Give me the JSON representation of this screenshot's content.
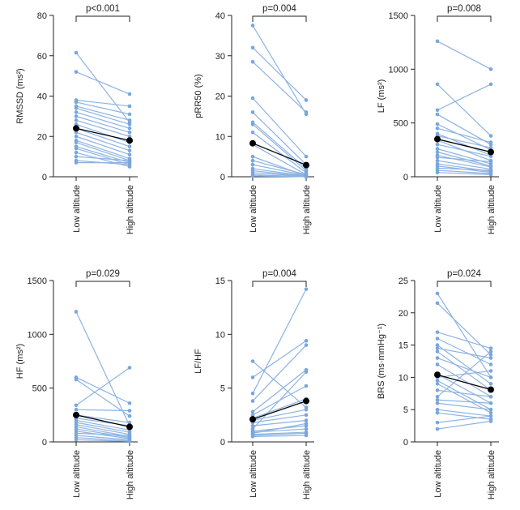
{
  "colors": {
    "line": "#8db3e2",
    "dot": "#7aa6dc",
    "mean": "#000000",
    "axis": "#222222"
  },
  "chart_data": [
    {
      "type": "line",
      "panel": "rmssd",
      "ylabel": "RMSSD (ms²)",
      "pvalue": "p<0.001",
      "categories": [
        "Low altitude",
        "High altitude"
      ],
      "ylim": [
        0,
        80
      ],
      "yticks": [
        "0",
        "20",
        "40",
        "60",
        "80"
      ],
      "ytick_values": [
        0,
        20,
        40,
        60,
        80
      ],
      "pairs": [
        [
          61.5,
          27
        ],
        [
          52,
          41
        ],
        [
          38,
          35
        ],
        [
          37,
          31
        ],
        [
          35,
          28
        ],
        [
          34,
          26
        ],
        [
          32,
          24
        ],
        [
          30,
          22
        ],
        [
          28,
          20
        ],
        [
          26,
          17
        ],
        [
          24,
          15
        ],
        [
          22,
          13
        ],
        [
          20,
          11
        ],
        [
          18,
          9
        ],
        [
          17,
          8
        ],
        [
          15,
          7
        ],
        [
          14,
          6
        ],
        [
          12,
          5
        ],
        [
          10,
          8
        ],
        [
          8,
          6
        ],
        [
          7,
          7
        ]
      ],
      "mean": [
        24,
        18
      ]
    },
    {
      "type": "line",
      "panel": "prr50",
      "ylabel": "pRR50 (%)",
      "pvalue": "p=0.004",
      "categories": [
        "Low altitude",
        "High altitude"
      ],
      "ylim": [
        0,
        40
      ],
      "yticks": [
        "0",
        "10",
        "20",
        "30",
        "40"
      ],
      "ytick_values": [
        0,
        10,
        20,
        30,
        40
      ],
      "pairs": [
        [
          37.5,
          15.5
        ],
        [
          32,
          19
        ],
        [
          28.5,
          16
        ],
        [
          19.5,
          5
        ],
        [
          16,
          3
        ],
        [
          13.5,
          2
        ],
        [
          13,
          1.5
        ],
        [
          11,
          1
        ],
        [
          8,
          0.5
        ],
        [
          5,
          0.2
        ],
        [
          4,
          0.5
        ],
        [
          3,
          0.3
        ],
        [
          2,
          0.2
        ],
        [
          1.5,
          0.1
        ],
        [
          1,
          0.1
        ],
        [
          0.5,
          0
        ],
        [
          0.2,
          0
        ]
      ],
      "mean": [
        8.3,
        2.9
      ]
    },
    {
      "type": "line",
      "panel": "lf",
      "ylabel": "LF (ms²)",
      "pvalue": "p=0.008",
      "categories": [
        "Low altitude",
        "High altitude"
      ],
      "ylim": [
        0,
        1500
      ],
      "yticks": [
        "0",
        "500",
        "1000",
        "1500"
      ],
      "ytick_values": [
        0,
        500,
        1000,
        1500
      ],
      "pairs": [
        [
          1260,
          1000
        ],
        [
          860,
          380
        ],
        [
          620,
          860
        ],
        [
          580,
          300
        ],
        [
          490,
          250
        ],
        [
          450,
          320
        ],
        [
          400,
          200
        ],
        [
          380,
          270
        ],
        [
          340,
          150
        ],
        [
          300,
          190
        ],
        [
          260,
          120
        ],
        [
          230,
          100
        ],
        [
          200,
          90
        ],
        [
          180,
          140
        ],
        [
          150,
          70
        ],
        [
          120,
          50
        ],
        [
          100,
          40
        ],
        [
          80,
          60
        ],
        [
          60,
          30
        ],
        [
          40,
          20
        ]
      ],
      "mean": [
        350,
        230
      ]
    },
    {
      "type": "line",
      "panel": "hf",
      "ylabel": "HF (ms²)",
      "pvalue": "p=0.029",
      "categories": [
        "Low altitude",
        "High altitude"
      ],
      "ylim": [
        0,
        1500
      ],
      "yticks": [
        "0",
        "500",
        "1000",
        "1500"
      ],
      "ytick_values": [
        0,
        500,
        1000,
        1500
      ],
      "pairs": [
        [
          1210,
          150
        ],
        [
          600,
          360
        ],
        [
          580,
          240
        ],
        [
          340,
          690
        ],
        [
          300,
          290
        ],
        [
          250,
          180
        ],
        [
          220,
          150
        ],
        [
          200,
          110
        ],
        [
          180,
          90
        ],
        [
          160,
          70
        ],
        [
          140,
          50
        ],
        [
          120,
          40
        ],
        [
          100,
          30
        ],
        [
          80,
          60
        ],
        [
          60,
          20
        ],
        [
          40,
          10
        ],
        [
          20,
          5
        ]
      ],
      "mean": [
        250,
        140
      ]
    },
    {
      "type": "line",
      "panel": "lfhf",
      "ylabel": "LF/HF",
      "pvalue": "p=0.004",
      "categories": [
        "Low altitude",
        "High altitude"
      ],
      "ylim": [
        0,
        15
      ],
      "yticks": [
        "0",
        "5",
        "10",
        "15"
      ],
      "ytick_values": [
        0,
        5,
        10,
        15
      ],
      "pairs": [
        [
          7.5,
          3.2
        ],
        [
          6.0,
          9.4
        ],
        [
          4.5,
          14.2
        ],
        [
          3.8,
          9.0
        ],
        [
          2.8,
          6.7
        ],
        [
          2.5,
          5.2
        ],
        [
          2.2,
          4.0
        ],
        [
          2.0,
          3.0
        ],
        [
          1.8,
          2.5
        ],
        [
          1.5,
          2.0
        ],
        [
          1.2,
          6.5
        ],
        [
          1.0,
          1.5
        ],
        [
          0.9,
          1.2
        ],
        [
          0.8,
          1.7
        ],
        [
          0.7,
          0.9
        ],
        [
          0.6,
          0.8
        ],
        [
          0.5,
          0.6
        ]
      ],
      "mean": [
        2.1,
        3.8
      ]
    },
    {
      "type": "line",
      "panel": "brs",
      "ylabel": "BRS (ms·mmHg⁻¹)",
      "pvalue": "p=0.024",
      "categories": [
        "Low altitude",
        "High altitude"
      ],
      "ylim": [
        0,
        25
      ],
      "yticks": [
        "0",
        "5",
        "10",
        "15",
        "20",
        "25"
      ],
      "ytick_values": [
        0,
        5,
        10,
        15,
        20,
        25
      ],
      "pairs": [
        [
          23,
          10
        ],
        [
          21.5,
          13.5
        ],
        [
          17,
          14.5
        ],
        [
          16,
          12
        ],
        [
          15,
          9
        ],
        [
          14.5,
          13
        ],
        [
          14,
          8
        ],
        [
          13,
          10
        ],
        [
          12,
          7
        ],
        [
          10.5,
          6
        ],
        [
          10,
          11
        ],
        [
          9.5,
          5
        ],
        [
          9,
          4.5
        ],
        [
          8,
          7
        ],
        [
          7,
          14
        ],
        [
          6.5,
          6
        ],
        [
          6,
          5
        ],
        [
          5,
          4
        ],
        [
          4.5,
          3.5
        ],
        [
          3,
          4
        ],
        [
          2,
          3.2
        ]
      ],
      "mean": [
        10.4,
        8.1
      ]
    }
  ]
}
